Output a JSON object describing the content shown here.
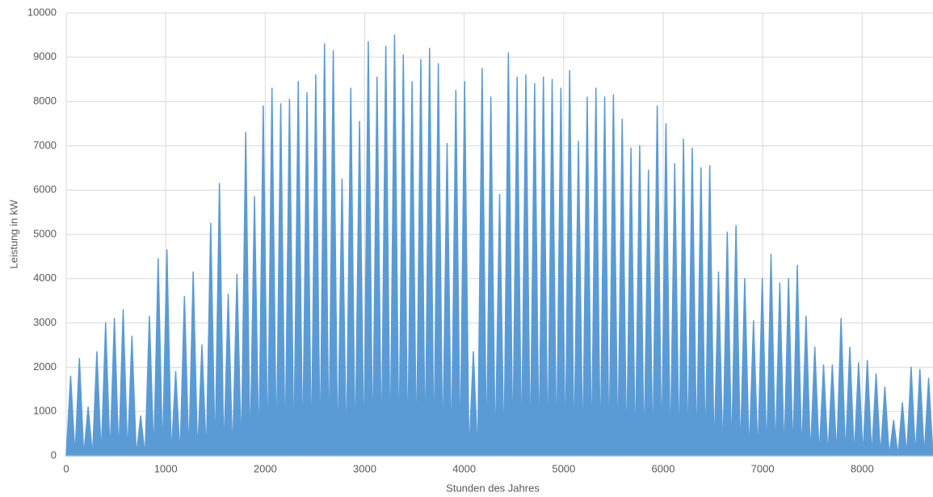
{
  "chart_data": {
    "type": "area",
    "x_label": "Stunden des Jahres",
    "y_label": "Leistung in kW",
    "x": [
      0,
      44,
      88,
      132,
      176,
      220,
      264,
      308,
      352,
      396,
      440,
      484,
      528,
      572,
      616,
      660,
      704,
      748,
      792,
      836,
      880,
      924,
      968,
      1012,
      1056,
      1100,
      1144,
      1188,
      1232,
      1276,
      1320,
      1364,
      1408,
      1452,
      1496,
      1540,
      1584,
      1628,
      1672,
      1716,
      1760,
      1804,
      1848,
      1892,
      1936,
      1980,
      2024,
      2068,
      2112,
      2156,
      2200,
      2244,
      2288,
      2332,
      2376,
      2420,
      2464,
      2508,
      2552,
      2596,
      2640,
      2684,
      2728,
      2772,
      2816,
      2860,
      2904,
      2948,
      2992,
      3036,
      3080,
      3124,
      3168,
      3212,
      3256,
      3300,
      3344,
      3388,
      3432,
      3476,
      3520,
      3564,
      3608,
      3652,
      3696,
      3740,
      3784,
      3828,
      3872,
      3916,
      3960,
      4004,
      4048,
      4092,
      4136,
      4180,
      4224,
      4268,
      4312,
      4356,
      4400,
      4444,
      4488,
      4532,
      4576,
      4620,
      4664,
      4708,
      4752,
      4796,
      4840,
      4884,
      4928,
      4972,
      5016,
      5060,
      5104,
      5148,
      5192,
      5236,
      5280,
      5324,
      5368,
      5412,
      5456,
      5500,
      5544,
      5588,
      5632,
      5676,
      5720,
      5764,
      5808,
      5852,
      5896,
      5940,
      5984,
      6028,
      6072,
      6116,
      6160,
      6204,
      6248,
      6292,
      6336,
      6380,
      6424,
      6468,
      6512,
      6556,
      6600,
      6644,
      6688,
      6732,
      6776,
      6820,
      6864,
      6908,
      6952,
      6996,
      7040,
      7084,
      7128,
      7172,
      7216,
      7260,
      7304,
      7348,
      7392,
      7436,
      7480,
      7524,
      7568,
      7612,
      7656,
      7700,
      7744,
      7788,
      7832,
      7876,
      7920,
      7964,
      8008,
      8052,
      8096,
      8140,
      8184,
      8228,
      8272,
      8316,
      8360,
      8404,
      8448,
      8492,
      8536,
      8580,
      8624,
      8668,
      8712
    ],
    "values": [
      0,
      1800,
      0,
      2200,
      0,
      1100,
      0,
      2350,
      0,
      3000,
      0,
      3100,
      0,
      3300,
      0,
      2700,
      0,
      900,
      0,
      3150,
      0,
      4450,
      0,
      4650,
      0,
      1900,
      0,
      3600,
      0,
      4150,
      0,
      2500,
      0,
      5250,
      0,
      6150,
      0,
      3650,
      0,
      4100,
      0,
      7300,
      0,
      5850,
      0,
      7900,
      0,
      8300,
      0,
      7950,
      0,
      8050,
      0,
      8450,
      0,
      8200,
      0,
      8600,
      0,
      9300,
      0,
      9150,
      0,
      6250,
      0,
      8300,
      0,
      7550,
      0,
      9350,
      0,
      8550,
      0,
      9250,
      0,
      9500,
      0,
      9050,
      0,
      8450,
      0,
      8950,
      0,
      9200,
      0,
      8850,
      0,
      7050,
      0,
      8250,
      0,
      8450,
      0,
      2350,
      0,
      8750,
      0,
      8100,
      0,
      5900,
      0,
      9100,
      0,
      8550,
      0,
      8600,
      0,
      8400,
      0,
      8550,
      0,
      8500,
      0,
      8300,
      0,
      8700,
      0,
      7100,
      0,
      8100,
      0,
      8300,
      0,
      8100,
      0,
      8150,
      0,
      7600,
      0,
      6950,
      0,
      7000,
      0,
      6450,
      0,
      7900,
      0,
      7500,
      0,
      6600,
      0,
      7150,
      0,
      6950,
      0,
      6500,
      0,
      6550,
      0,
      4150,
      0,
      5050,
      0,
      5200,
      0,
      4000,
      0,
      3050,
      0,
      4000,
      0,
      4550,
      0,
      3900,
      0,
      4000,
      0,
      4300,
      0,
      3150,
      0,
      2450,
      0,
      2050,
      0,
      2050,
      0,
      3100,
      0,
      2450,
      0,
      2100,
      0,
      2150,
      0,
      1850,
      0,
      1550,
      0,
      800,
      0,
      1200,
      0,
      2000,
      0,
      1950,
      0,
      1750,
      0
    ],
    "color": "#5b9bd5",
    "xlim": [
      0,
      8712
    ],
    "xticks": [
      0,
      1000,
      2000,
      3000,
      4000,
      5000,
      6000,
      7000,
      8000
    ],
    "ylim": [
      0,
      10000
    ],
    "yticks": [
      0,
      1000,
      2000,
      3000,
      4000,
      5000,
      6000,
      7000,
      8000,
      9000,
      10000
    ],
    "grid": true
  }
}
